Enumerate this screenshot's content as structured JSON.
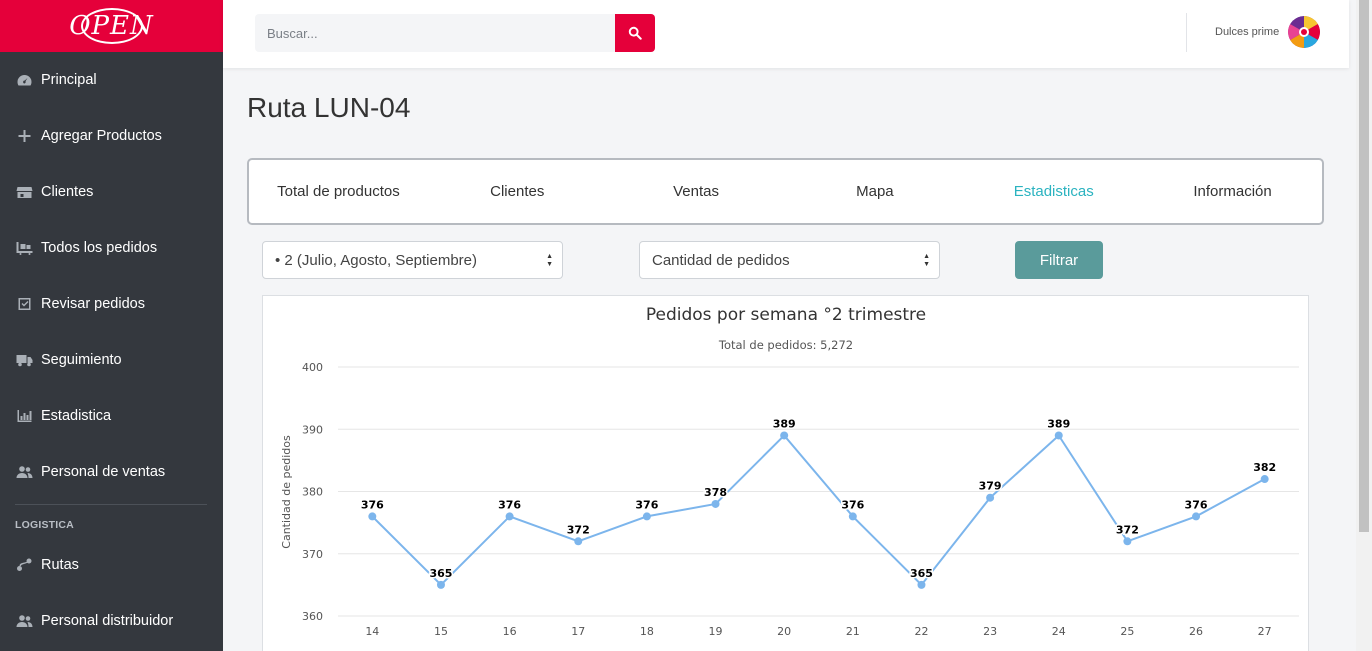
{
  "brand": {
    "logo_text": "OPEN"
  },
  "sidebar": {
    "items": [
      {
        "label": "Principal",
        "icon": "dashboard-icon"
      },
      {
        "label": "Agregar Productos",
        "icon": "plus-icon"
      },
      {
        "label": "Clientes",
        "icon": "store-icon"
      },
      {
        "label": "Todos los pedidos",
        "icon": "truck-loading-icon"
      },
      {
        "label": "Revisar pedidos",
        "icon": "check-square-icon"
      },
      {
        "label": "Seguimiento",
        "icon": "delivery-truck-icon"
      },
      {
        "label": "Estadistica",
        "icon": "bar-chart-icon"
      },
      {
        "label": "Personal de ventas",
        "icon": "users-icon"
      }
    ],
    "section_title": "LOGISTICA",
    "logistics_items": [
      {
        "label": "Rutas",
        "icon": "route-icon"
      },
      {
        "label": "Personal distribuidor",
        "icon": "users-icon"
      }
    ]
  },
  "header": {
    "search_placeholder": "Buscar...",
    "user_name": "Dulces prime"
  },
  "page": {
    "title": "Ruta LUN-04",
    "tabs": [
      "Total de productos",
      "Clientes",
      "Ventas",
      "Mapa",
      "Estadisticas",
      "Información"
    ],
    "active_tab": "Estadisticas"
  },
  "filters": {
    "period_selected": "• 2 (Julio, Agosto, Septiembre)",
    "metric_selected": "Cantidad de pedidos",
    "filter_label": "Filtrar"
  },
  "colors": {
    "brand": "#e5003a",
    "sidebar": "#34383e",
    "active_tab": "#2bb3c0",
    "filter_button": "#5a9b9b",
    "line": "#7cb5ec"
  },
  "chart_data": {
    "type": "line",
    "title": "Pedidos por semana °2 trimestre",
    "subtitle": "Total de pedidos: 5,272",
    "ylabel": "Cantidad de pedidos",
    "xlabel": "",
    "ylim": [
      360,
      400
    ],
    "yticks": [
      400,
      390,
      380,
      370,
      360
    ],
    "grid": true,
    "categories": [
      "14",
      "15",
      "16",
      "17",
      "18",
      "19",
      "20",
      "21",
      "22",
      "23",
      "24",
      "25",
      "26",
      "27"
    ],
    "values": [
      376,
      365,
      376,
      372,
      376,
      378,
      389,
      376,
      365,
      379,
      389,
      372,
      376,
      382
    ]
  }
}
